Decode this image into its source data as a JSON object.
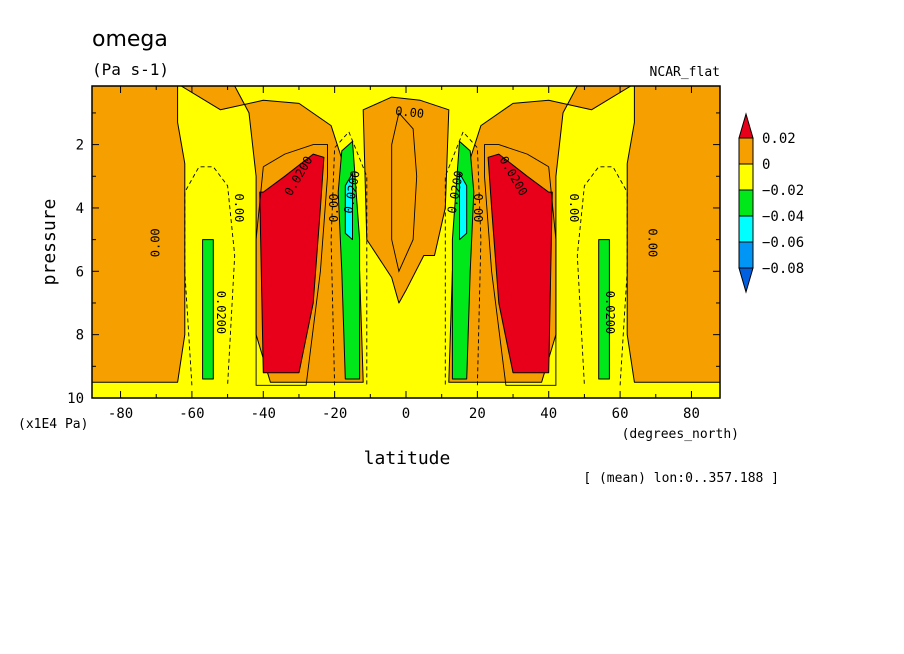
{
  "chart_data": {
    "type": "heatmap",
    "title": "omega",
    "units": "(Pa s-1)",
    "colormap_name": "NCAR_flat",
    "xlabel": "latitude",
    "xunits": "(degrees_north)",
    "ylabel": "pressure",
    "yunits": "(x1E4 Pa)",
    "footnote": "[ (mean) lon:0..357.188 ]",
    "xlim": [
      -88,
      88
    ],
    "ylim": [
      10,
      0.15
    ],
    "x_ticks": [
      -80,
      -60,
      -40,
      -20,
      0,
      20,
      40,
      60,
      80
    ],
    "x_tick_labels": [
      "-80",
      "-60",
      "-40",
      "-20",
      "0",
      "20",
      "40",
      "60",
      "80"
    ],
    "y_ticks": [
      2,
      4,
      6,
      8,
      10
    ],
    "y_tick_labels": [
      "2",
      "4",
      "6",
      "8",
      "10"
    ],
    "colorbar": {
      "levels": [
        0.02,
        0,
        -0.02,
        -0.04,
        -0.06,
        -0.08
      ],
      "labels": [
        "0.02",
        "0",
        "−0.02",
        "−0.04",
        "−0.06",
        "−0.08"
      ],
      "colors": [
        "#e8001a",
        "#f5a000",
        "#ffff00",
        "#00e81a",
        "#00ffff",
        "#0096f5",
        "#0060e0"
      ]
    },
    "regions": [
      {
        "name": "orange-north-pole",
        "value_range": "0 to 0.02",
        "color": "#f5a000",
        "points": [
          [
            88,
            0.15
          ],
          [
            88,
            9.5
          ],
          [
            64,
            9.5
          ],
          [
            62,
            8
          ],
          [
            62,
            2.6
          ],
          [
            64,
            1.3
          ],
          [
            64,
            0.15
          ]
        ]
      },
      {
        "name": "orange-south-pole",
        "value_range": "0 to 0.02",
        "color": "#f5a000",
        "points": [
          [
            -88,
            0.15
          ],
          [
            -88,
            9.5
          ],
          [
            -64,
            9.5
          ],
          [
            -62,
            8
          ],
          [
            -62,
            2.6
          ],
          [
            -64,
            1.3
          ],
          [
            -64,
            0.15
          ]
        ]
      },
      {
        "name": "orange-south-cell",
        "value_range": "0 to 0.02",
        "color": "#f5a000",
        "points": [
          [
            -63,
            0.15
          ],
          [
            -48,
            0.15
          ],
          [
            -44,
            1.0
          ],
          [
            -42,
            3
          ],
          [
            -42,
            8
          ],
          [
            -38,
            9.5
          ],
          [
            -12,
            9.5
          ],
          [
            -13,
            6
          ],
          [
            -15,
            3.5
          ],
          [
            -21,
            1.4
          ],
          [
            -30,
            0.7
          ],
          [
            -40,
            0.6
          ],
          [
            -52,
            0.9
          ]
        ]
      },
      {
        "name": "orange-north-cell",
        "value_range": "0 to 0.02",
        "color": "#f5a000",
        "points": [
          [
            63,
            0.15
          ],
          [
            48,
            0.15
          ],
          [
            44,
            1.0
          ],
          [
            42,
            3
          ],
          [
            42,
            8
          ],
          [
            38,
            9.5
          ],
          [
            12,
            9.5
          ],
          [
            13,
            6
          ],
          [
            15,
            3.5
          ],
          [
            21,
            1.4
          ],
          [
            30,
            0.7
          ],
          [
            40,
            0.6
          ],
          [
            52,
            0.9
          ]
        ]
      },
      {
        "name": "orange-equator",
        "value_range": "0 to 0.02",
        "color": "#f5a000",
        "points": [
          [
            -12,
            0.9
          ],
          [
            -11,
            5
          ],
          [
            -4,
            6.2
          ],
          [
            -2,
            7
          ],
          [
            0,
            6.6
          ],
          [
            5,
            5.5
          ],
          [
            8,
            5.5
          ],
          [
            11,
            4
          ],
          [
            12,
            0.9
          ],
          [
            4,
            0.6
          ],
          [
            -4,
            0.5
          ]
        ]
      },
      {
        "name": "red-south",
        "value_range": "above 0.02",
        "color": "#e8001a",
        "points": [
          [
            -41,
            3.5
          ],
          [
            -40,
            9.2
          ],
          [
            -30,
            9.2
          ],
          [
            -26,
            7
          ],
          [
            -24,
            4
          ],
          [
            -23,
            2.4
          ],
          [
            -26,
            2.3
          ],
          [
            -34,
            3
          ],
          [
            -40,
            3.5
          ]
        ]
      },
      {
        "name": "red-north",
        "value_range": "above 0.02",
        "color": "#e8001a",
        "points": [
          [
            41,
            3.5
          ],
          [
            40,
            9.2
          ],
          [
            30,
            9.2
          ],
          [
            26,
            7
          ],
          [
            24,
            4
          ],
          [
            23,
            2.4
          ],
          [
            26,
            2.3
          ],
          [
            34,
            3
          ],
          [
            40,
            3.5
          ]
        ]
      },
      {
        "name": "green-south-midlat",
        "value_range": "-0.02 to -0.04",
        "color": "#00e81a",
        "points": [
          [
            -57,
            5
          ],
          [
            -54,
            5
          ],
          [
            -54,
            9.4
          ],
          [
            -57,
            9.4
          ]
        ]
      },
      {
        "name": "green-north-midlat",
        "value_range": "-0.02 to -0.04",
        "color": "#00e81a",
        "points": [
          [
            57,
            5
          ],
          [
            54,
            5
          ],
          [
            54,
            9.4
          ],
          [
            57,
            9.4
          ]
        ]
      },
      {
        "name": "green-south-itcz",
        "value_range": "-0.02 to -0.04",
        "color": "#00e81a",
        "points": [
          [
            -18,
            2.2
          ],
          [
            -15,
            1.9
          ],
          [
            -13,
            5
          ],
          [
            -13,
            9.4
          ],
          [
            -17,
            9.4
          ],
          [
            -18,
            6
          ],
          [
            -19,
            3.5
          ]
        ]
      },
      {
        "name": "green-north-itcz",
        "value_range": "-0.02 to -0.04",
        "color": "#00e81a",
        "points": [
          [
            18,
            2.2
          ],
          [
            15,
            1.9
          ],
          [
            13,
            5
          ],
          [
            13,
            9.4
          ],
          [
            17,
            9.4
          ],
          [
            18,
            6
          ],
          [
            19,
            3.5
          ]
        ]
      },
      {
        "name": "cyan-south",
        "value_range": "-0.04 to -0.06",
        "color": "#00ffff",
        "points": [
          [
            -17,
            3.3
          ],
          [
            -15,
            2.9
          ],
          [
            -15,
            5
          ],
          [
            -17,
            4.8
          ]
        ]
      },
      {
        "name": "cyan-north",
        "value_range": "-0.04 to -0.06",
        "color": "#00ffff",
        "points": [
          [
            17,
            3.3
          ],
          [
            15,
            2.9
          ],
          [
            15,
            5
          ],
          [
            17,
            4.8
          ]
        ]
      }
    ],
    "contour_lines": [
      {
        "value": "0.0200",
        "style": "solid",
        "points": [
          [
            -40,
            2.7
          ],
          [
            -42,
            5
          ],
          [
            -42,
            9.6
          ],
          [
            -28,
            9.6
          ],
          [
            -24,
            6
          ],
          [
            -22,
            3
          ],
          [
            -22,
            2.0
          ],
          [
            -26,
            2.0
          ],
          [
            -34,
            2.3
          ],
          [
            -40,
            2.7
          ]
        ]
      },
      {
        "value": "0.0200",
        "style": "solid",
        "points": [
          [
            40,
            2.7
          ],
          [
            42,
            5
          ],
          [
            42,
            9.6
          ],
          [
            28,
            9.6
          ],
          [
            24,
            6
          ],
          [
            22,
            3
          ],
          [
            22,
            2.0
          ],
          [
            26,
            2.0
          ],
          [
            34,
            2.3
          ],
          [
            40,
            2.7
          ]
        ]
      },
      {
        "value": "0.00",
        "style": "solid",
        "points": [
          [
            -2,
            1
          ],
          [
            -4,
            2
          ],
          [
            -4,
            5
          ],
          [
            -2,
            6
          ],
          [
            2,
            5
          ],
          [
            3,
            3
          ],
          [
            2,
            1.5
          ],
          [
            -2,
            1
          ]
        ]
      },
      {
        "value": "-0.0200",
        "style": "dashed",
        "points": [
          [
            -60,
            9.6
          ],
          [
            -62,
            6
          ],
          [
            -62,
            3.5
          ],
          [
            -58,
            2.7
          ],
          [
            -54,
            2.7
          ],
          [
            -50,
            3.3
          ],
          [
            -48,
            5.5
          ],
          [
            -50,
            9.6
          ]
        ]
      },
      {
        "value": "-0.0200",
        "style": "dashed",
        "points": [
          [
            60,
            9.6
          ],
          [
            62,
            6
          ],
          [
            62,
            3.5
          ],
          [
            58,
            2.7
          ],
          [
            54,
            2.7
          ],
          [
            50,
            3.3
          ],
          [
            48,
            5.5
          ],
          [
            50,
            9.6
          ]
        ]
      },
      {
        "value": "-0.0200",
        "style": "dashed",
        "points": [
          [
            -20,
            9.6
          ],
          [
            -21,
            5
          ],
          [
            -20,
            2.1
          ],
          [
            -16,
            1.6
          ],
          [
            -11,
            3
          ],
          [
            -11,
            9.6
          ]
        ]
      },
      {
        "value": "-0.0200",
        "style": "dashed",
        "points": [
          [
            20,
            9.6
          ],
          [
            21,
            5
          ],
          [
            20,
            2.1
          ],
          [
            16,
            1.6
          ],
          [
            11,
            3
          ],
          [
            11,
            9.6
          ]
        ]
      }
    ],
    "contour_labels": [
      {
        "text": "0.00",
        "x": -70,
        "y": 5.1,
        "angle": -90
      },
      {
        "text": "0.00",
        "x": -47,
        "y": 4.0,
        "angle": 90
      },
      {
        "text": "0.0200",
        "x": -52,
        "y": 7.3,
        "angle": 90
      },
      {
        "text": "0.0200",
        "x": -30,
        "y": 3.0,
        "angle": -60
      },
      {
        "text": "0.00",
        "x": -20,
        "y": 4.0,
        "angle": -90
      },
      {
        "text": "0.0200",
        "x": -15,
        "y": 3.5,
        "angle": -80
      },
      {
        "text": "0.00",
        "x": 1,
        "y": 1.0,
        "angle": 6
      },
      {
        "text": "0.0200",
        "x": 14,
        "y": 3.5,
        "angle": -80
      },
      {
        "text": "0.00",
        "x": 20,
        "y": 4.0,
        "angle": 90
      },
      {
        "text": "0.0200",
        "x": 30,
        "y": 3.0,
        "angle": 60
      },
      {
        "text": "0.00",
        "x": 47,
        "y": 4.0,
        "angle": 90
      },
      {
        "text": "0.0200",
        "x": 57,
        "y": 7.3,
        "angle": 90
      },
      {
        "text": "0.00",
        "x": 69,
        "y": 5.1,
        "angle": 90
      }
    ]
  }
}
